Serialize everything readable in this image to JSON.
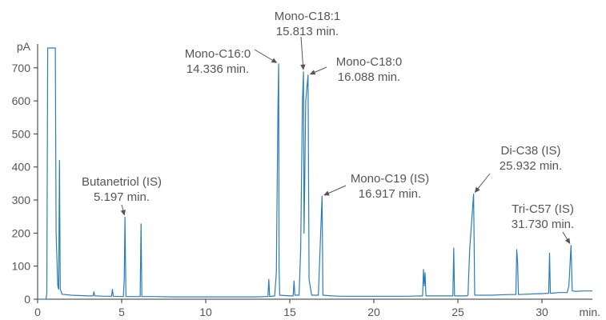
{
  "chart_data": {
    "type": "line",
    "title": "",
    "xlabel": "",
    "ylabel": "",
    "y_unit_label": "pA",
    "x_unit_label": "min.",
    "xlim": [
      0,
      33
    ],
    "ylim": [
      0,
      760
    ],
    "x_ticks": [
      0,
      5,
      10,
      15,
      20,
      25,
      30
    ],
    "y_ticks": [
      0,
      100,
      200,
      300,
      400,
      500,
      600,
      700
    ],
    "grid": false,
    "line_color": "#2a7db8",
    "series": [
      {
        "points": [
          [
            0.0,
            0
          ],
          [
            0.45,
            0
          ],
          [
            0.5,
            0
          ],
          [
            0.55,
            20
          ],
          [
            0.6,
            760
          ],
          [
            1.05,
            760
          ],
          [
            1.1,
            200
          ],
          [
            1.2,
            40
          ],
          [
            1.25,
            30
          ],
          [
            1.3,
            420
          ],
          [
            1.35,
            30
          ],
          [
            1.45,
            15
          ],
          [
            2.0,
            12
          ],
          [
            3.0,
            10
          ],
          [
            3.3,
            10
          ],
          [
            3.35,
            22
          ],
          [
            3.4,
            10
          ],
          [
            4.0,
            9
          ],
          [
            4.4,
            9
          ],
          [
            4.45,
            30
          ],
          [
            4.5,
            9
          ],
          [
            5.0,
            8
          ],
          [
            5.1,
            8
          ],
          [
            5.15,
            60
          ],
          [
            5.197,
            248
          ],
          [
            5.25,
            8
          ],
          [
            6.0,
            8
          ],
          [
            6.1,
            8
          ],
          [
            6.15,
            228
          ],
          [
            6.2,
            8
          ],
          [
            7.0,
            8
          ],
          [
            8.0,
            7
          ],
          [
            9.0,
            7
          ],
          [
            10.0,
            7
          ],
          [
            11.0,
            7
          ],
          [
            12.0,
            7
          ],
          [
            13.0,
            7
          ],
          [
            13.6,
            8
          ],
          [
            13.7,
            8
          ],
          [
            13.75,
            60
          ],
          [
            13.8,
            8
          ],
          [
            14.1,
            10
          ],
          [
            14.2,
            80
          ],
          [
            14.3,
            600
          ],
          [
            14.336,
            712
          ],
          [
            14.36,
            100
          ],
          [
            14.4,
            12
          ],
          [
            15.0,
            10
          ],
          [
            15.2,
            10
          ],
          [
            15.25,
            55
          ],
          [
            15.3,
            12
          ],
          [
            15.55,
            12
          ],
          [
            15.65,
            150
          ],
          [
            15.75,
            600
          ],
          [
            15.813,
            688
          ],
          [
            15.85,
            200
          ],
          [
            15.9,
            400
          ],
          [
            15.95,
            600
          ],
          [
            16.088,
            678
          ],
          [
            16.15,
            60
          ],
          [
            16.3,
            12
          ],
          [
            16.7,
            12
          ],
          [
            16.8,
            150
          ],
          [
            16.917,
            312
          ],
          [
            16.97,
            12
          ],
          [
            17.5,
            10
          ],
          [
            18.0,
            9
          ],
          [
            19.0,
            9
          ],
          [
            20.0,
            9
          ],
          [
            21.0,
            9
          ],
          [
            22.0,
            9
          ],
          [
            22.8,
            10
          ],
          [
            22.9,
            10
          ],
          [
            22.95,
            90
          ],
          [
            23.0,
            40
          ],
          [
            23.05,
            80
          ],
          [
            23.1,
            10
          ],
          [
            23.5,
            10
          ],
          [
            24.0,
            10
          ],
          [
            24.7,
            10
          ],
          [
            24.75,
            155
          ],
          [
            24.8,
            10
          ],
          [
            25.5,
            10
          ],
          [
            25.6,
            12
          ],
          [
            25.7,
            150
          ],
          [
            25.932,
            318
          ],
          [
            26.0,
            12
          ],
          [
            26.5,
            12
          ],
          [
            27.0,
            12
          ],
          [
            28.0,
            14
          ],
          [
            28.45,
            14
          ],
          [
            28.5,
            150
          ],
          [
            28.55,
            110
          ],
          [
            28.6,
            14
          ],
          [
            29.0,
            15
          ],
          [
            29.5,
            16
          ],
          [
            30.0,
            17
          ],
          [
            30.4,
            18
          ],
          [
            30.45,
            140
          ],
          [
            30.5,
            18
          ],
          [
            31.0,
            20
          ],
          [
            31.5,
            20
          ],
          [
            31.6,
            40
          ],
          [
            31.73,
            163
          ],
          [
            31.8,
            25
          ],
          [
            32.0,
            24
          ],
          [
            32.5,
            25
          ],
          [
            33.0,
            25
          ]
        ]
      }
    ],
    "annotations": [
      {
        "label": "Butanetriol  (IS)",
        "time": "5.197 min.",
        "x": 5.197,
        "y": 248
      },
      {
        "label": "Mono-C16:0",
        "time": "14.336 min.",
        "x": 14.336,
        "y": 712
      },
      {
        "label": "Mono-C18:1",
        "time": "15.813 min.",
        "x": 15.813,
        "y": 688
      },
      {
        "label": "Mono-C18:0",
        "time": "16.088 min.",
        "x": 16.088,
        "y": 678
      },
      {
        "label": "Mono-C19 (IS)",
        "time": "16.917 min.",
        "x": 16.917,
        "y": 312
      },
      {
        "label": "Di-C38 (IS)",
        "time": "25.932 min.",
        "x": 25.932,
        "y": 318
      },
      {
        "label": "Tri-C57 (IS)",
        "time": "31.730 min.",
        "x": 31.73,
        "y": 163
      }
    ]
  }
}
